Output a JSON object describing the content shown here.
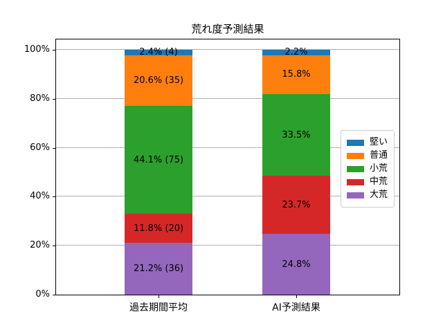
{
  "title": "荒れ度予測結果",
  "chart_data": {
    "type": "bar",
    "stacked": true,
    "orientation": "vertical",
    "categories": [
      "過去期間平均",
      "AI予測結果"
    ],
    "series": [
      {
        "name": "大荒",
        "color": "#9467bd",
        "values": [
          21.2,
          24.8
        ],
        "display_labels": [
          "21.2% (36)",
          "24.8%"
        ]
      },
      {
        "name": "中荒",
        "color": "#d62728",
        "values": [
          11.8,
          23.7
        ],
        "display_labels": [
          "11.8% (20)",
          "23.7%"
        ]
      },
      {
        "name": "小荒",
        "color": "#2ca02c",
        "values": [
          44.1,
          33.5
        ],
        "display_labels": [
          "44.1% (75)",
          "33.5%"
        ]
      },
      {
        "name": "普通",
        "color": "#ff7f0e",
        "values": [
          20.6,
          15.8
        ],
        "display_labels": [
          "20.6% (35)",
          "15.8%"
        ]
      },
      {
        "name": "堅い",
        "color": "#1f77b4",
        "values": [
          2.4,
          2.2
        ],
        "display_labels": [
          "2.4% (4)",
          "2.2%"
        ]
      }
    ],
    "legend": {
      "position": "center right",
      "entries": [
        "堅い",
        "普通",
        "小荒",
        "中荒",
        "大荒"
      ]
    },
    "y_axis": {
      "ticks": [
        {
          "value": 0,
          "label": "0%"
        },
        {
          "value": 20,
          "label": "20%"
        },
        {
          "value": 40,
          "label": "40%"
        },
        {
          "value": 60,
          "label": "60%"
        },
        {
          "value": 80,
          "label": "80%"
        },
        {
          "value": 100,
          "label": "100%"
        }
      ],
      "ylim": [
        0,
        104.5
      ]
    },
    "grid": true,
    "grid_color": "#b0b0b0"
  }
}
